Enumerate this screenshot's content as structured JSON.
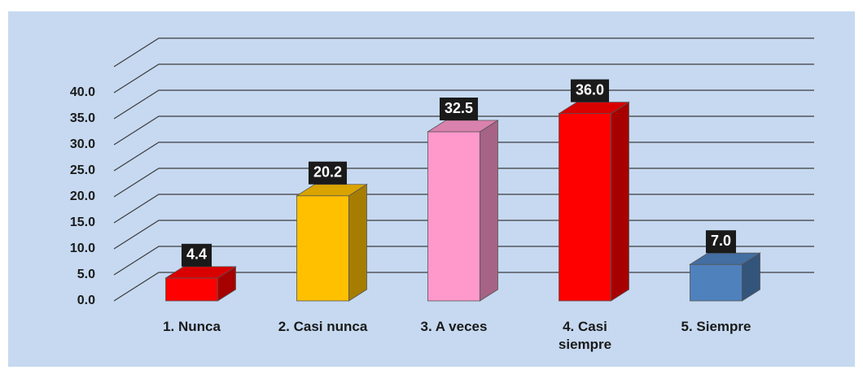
{
  "chart_data": {
    "type": "bar3d",
    "categories": [
      "1. Nunca",
      "2. Casi nunca",
      "3. A veces",
      "4. Casi siempre",
      "5. Siempre"
    ],
    "values": [
      4.4,
      20.2,
      32.5,
      36.0,
      7.0
    ],
    "value_labels": [
      "4.4",
      "20.2",
      "32.5",
      "36.0",
      "7.0"
    ],
    "colors": [
      "#ff0000",
      "#ffc000",
      "#ff99cc",
      "#ff0000",
      "#4f81bd"
    ],
    "ylim": [
      0,
      45
    ],
    "yticks": [
      {
        "value": 0,
        "label": "0.0"
      },
      {
        "value": 5,
        "label": "5.0"
      },
      {
        "value": 10,
        "label": "10.0"
      },
      {
        "value": 15,
        "label": "15.0"
      },
      {
        "value": 20,
        "label": "20.0"
      },
      {
        "value": 25,
        "label": "25.0"
      },
      {
        "value": 30,
        "label": "30.0"
      },
      {
        "value": 35,
        "label": "35.0"
      },
      {
        "value": 40,
        "label": "40.0"
      }
    ],
    "grid": true
  }
}
